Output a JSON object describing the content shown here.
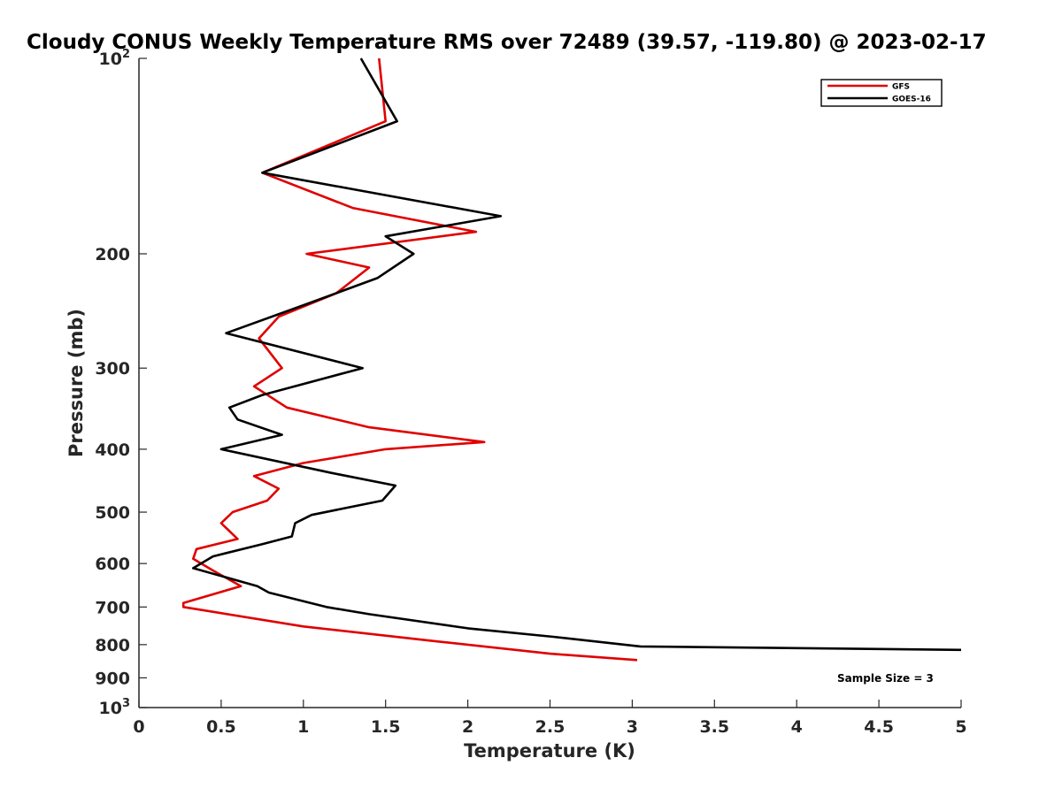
{
  "chart_data": {
    "type": "line",
    "title": "Cloudy CONUS Weekly Temperature RMS over 72489 (39.57, -119.80) @ 2023-02-17",
    "xlabel": "Temperature (K)",
    "ylabel": "Pressure (mb)",
    "xlim": [
      0,
      5
    ],
    "ylim": [
      100,
      1000
    ],
    "yscale": "log",
    "y_reversed": true,
    "xticks": [
      "0",
      "0.5",
      "1",
      "1.5",
      "2",
      "2.5",
      "3",
      "3.5",
      "4",
      "4.5",
      "5"
    ],
    "yticks": [
      {
        "value": 100,
        "base": "10",
        "exp": "2"
      },
      {
        "value": 200,
        "label": "200"
      },
      {
        "value": 300,
        "label": "300"
      },
      {
        "value": 400,
        "label": "400"
      },
      {
        "value": 500,
        "label": "500"
      },
      {
        "value": 600,
        "label": "600"
      },
      {
        "value": 700,
        "label": "700"
      },
      {
        "value": 800,
        "label": "800"
      },
      {
        "value": 900,
        "label": "900"
      },
      {
        "value": 1000,
        "base": "10",
        "exp": "3"
      }
    ],
    "legend_position": "top-right",
    "annotation": "Sample Size = 3",
    "series": [
      {
        "name": "GFS",
        "color": "#e00000",
        "points": [
          [
            1.46,
            100
          ],
          [
            1.5,
            125
          ],
          [
            0.75,
            150
          ],
          [
            1.3,
            170
          ],
          [
            2.05,
            185
          ],
          [
            1.02,
            200
          ],
          [
            1.4,
            210
          ],
          [
            1.2,
            230
          ],
          [
            0.85,
            250
          ],
          [
            0.73,
            270
          ],
          [
            0.87,
            300
          ],
          [
            0.7,
            320
          ],
          [
            0.9,
            345
          ],
          [
            1.4,
            370
          ],
          [
            2.1,
            390
          ],
          [
            1.5,
            400
          ],
          [
            1.0,
            420
          ],
          [
            0.7,
            440
          ],
          [
            0.85,
            460
          ],
          [
            0.78,
            480
          ],
          [
            0.57,
            500
          ],
          [
            0.5,
            520
          ],
          [
            0.6,
            550
          ],
          [
            0.35,
            570
          ],
          [
            0.33,
            590
          ],
          [
            0.45,
            615
          ],
          [
            0.62,
            650
          ],
          [
            0.27,
            690
          ],
          [
            0.27,
            700
          ],
          [
            1.0,
            750
          ],
          [
            1.8,
            790
          ],
          [
            2.5,
            826
          ],
          [
            3.03,
            845
          ]
        ]
      },
      {
        "name": "GOES-16",
        "color": "#000000",
        "points": [
          [
            1.35,
            100
          ],
          [
            1.57,
            125
          ],
          [
            0.75,
            150
          ],
          [
            2.2,
            175
          ],
          [
            1.5,
            188
          ],
          [
            1.67,
            200
          ],
          [
            1.45,
            218
          ],
          [
            1.0,
            240
          ],
          [
            0.53,
            265
          ],
          [
            1.36,
            300
          ],
          [
            0.75,
            330
          ],
          [
            0.55,
            345
          ],
          [
            0.6,
            360
          ],
          [
            0.87,
            380
          ],
          [
            0.5,
            400
          ],
          [
            1.17,
            435
          ],
          [
            1.56,
            455
          ],
          [
            1.48,
            480
          ],
          [
            1.05,
            505
          ],
          [
            0.95,
            520
          ],
          [
            0.93,
            545
          ],
          [
            0.75,
            560
          ],
          [
            0.45,
            585
          ],
          [
            0.33,
            610
          ],
          [
            0.72,
            650
          ],
          [
            0.79,
            665
          ],
          [
            1.14,
            700
          ],
          [
            1.4,
            718
          ],
          [
            2.0,
            755
          ],
          [
            2.52,
            778
          ],
          [
            3.05,
            805
          ],
          [
            5.0,
            815
          ]
        ]
      }
    ]
  }
}
